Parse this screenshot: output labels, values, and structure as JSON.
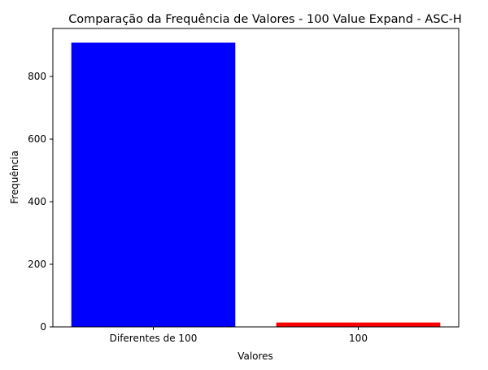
{
  "chart_data": {
    "type": "bar",
    "title": "Comparação da Frequência de Valores - 100 Value Expand - ASC-H",
    "xlabel": "Valores",
    "ylabel": "Frequência",
    "categories": [
      "Diferentes de 100",
      "100"
    ],
    "values": [
      908,
      14
    ],
    "bar_colors": [
      "#0000ff",
      "#ff0000"
    ],
    "ylim": [
      0,
      953.4
    ],
    "yticks": [
      0,
      200,
      400,
      600,
      800
    ],
    "grid": false,
    "legend": "none"
  }
}
